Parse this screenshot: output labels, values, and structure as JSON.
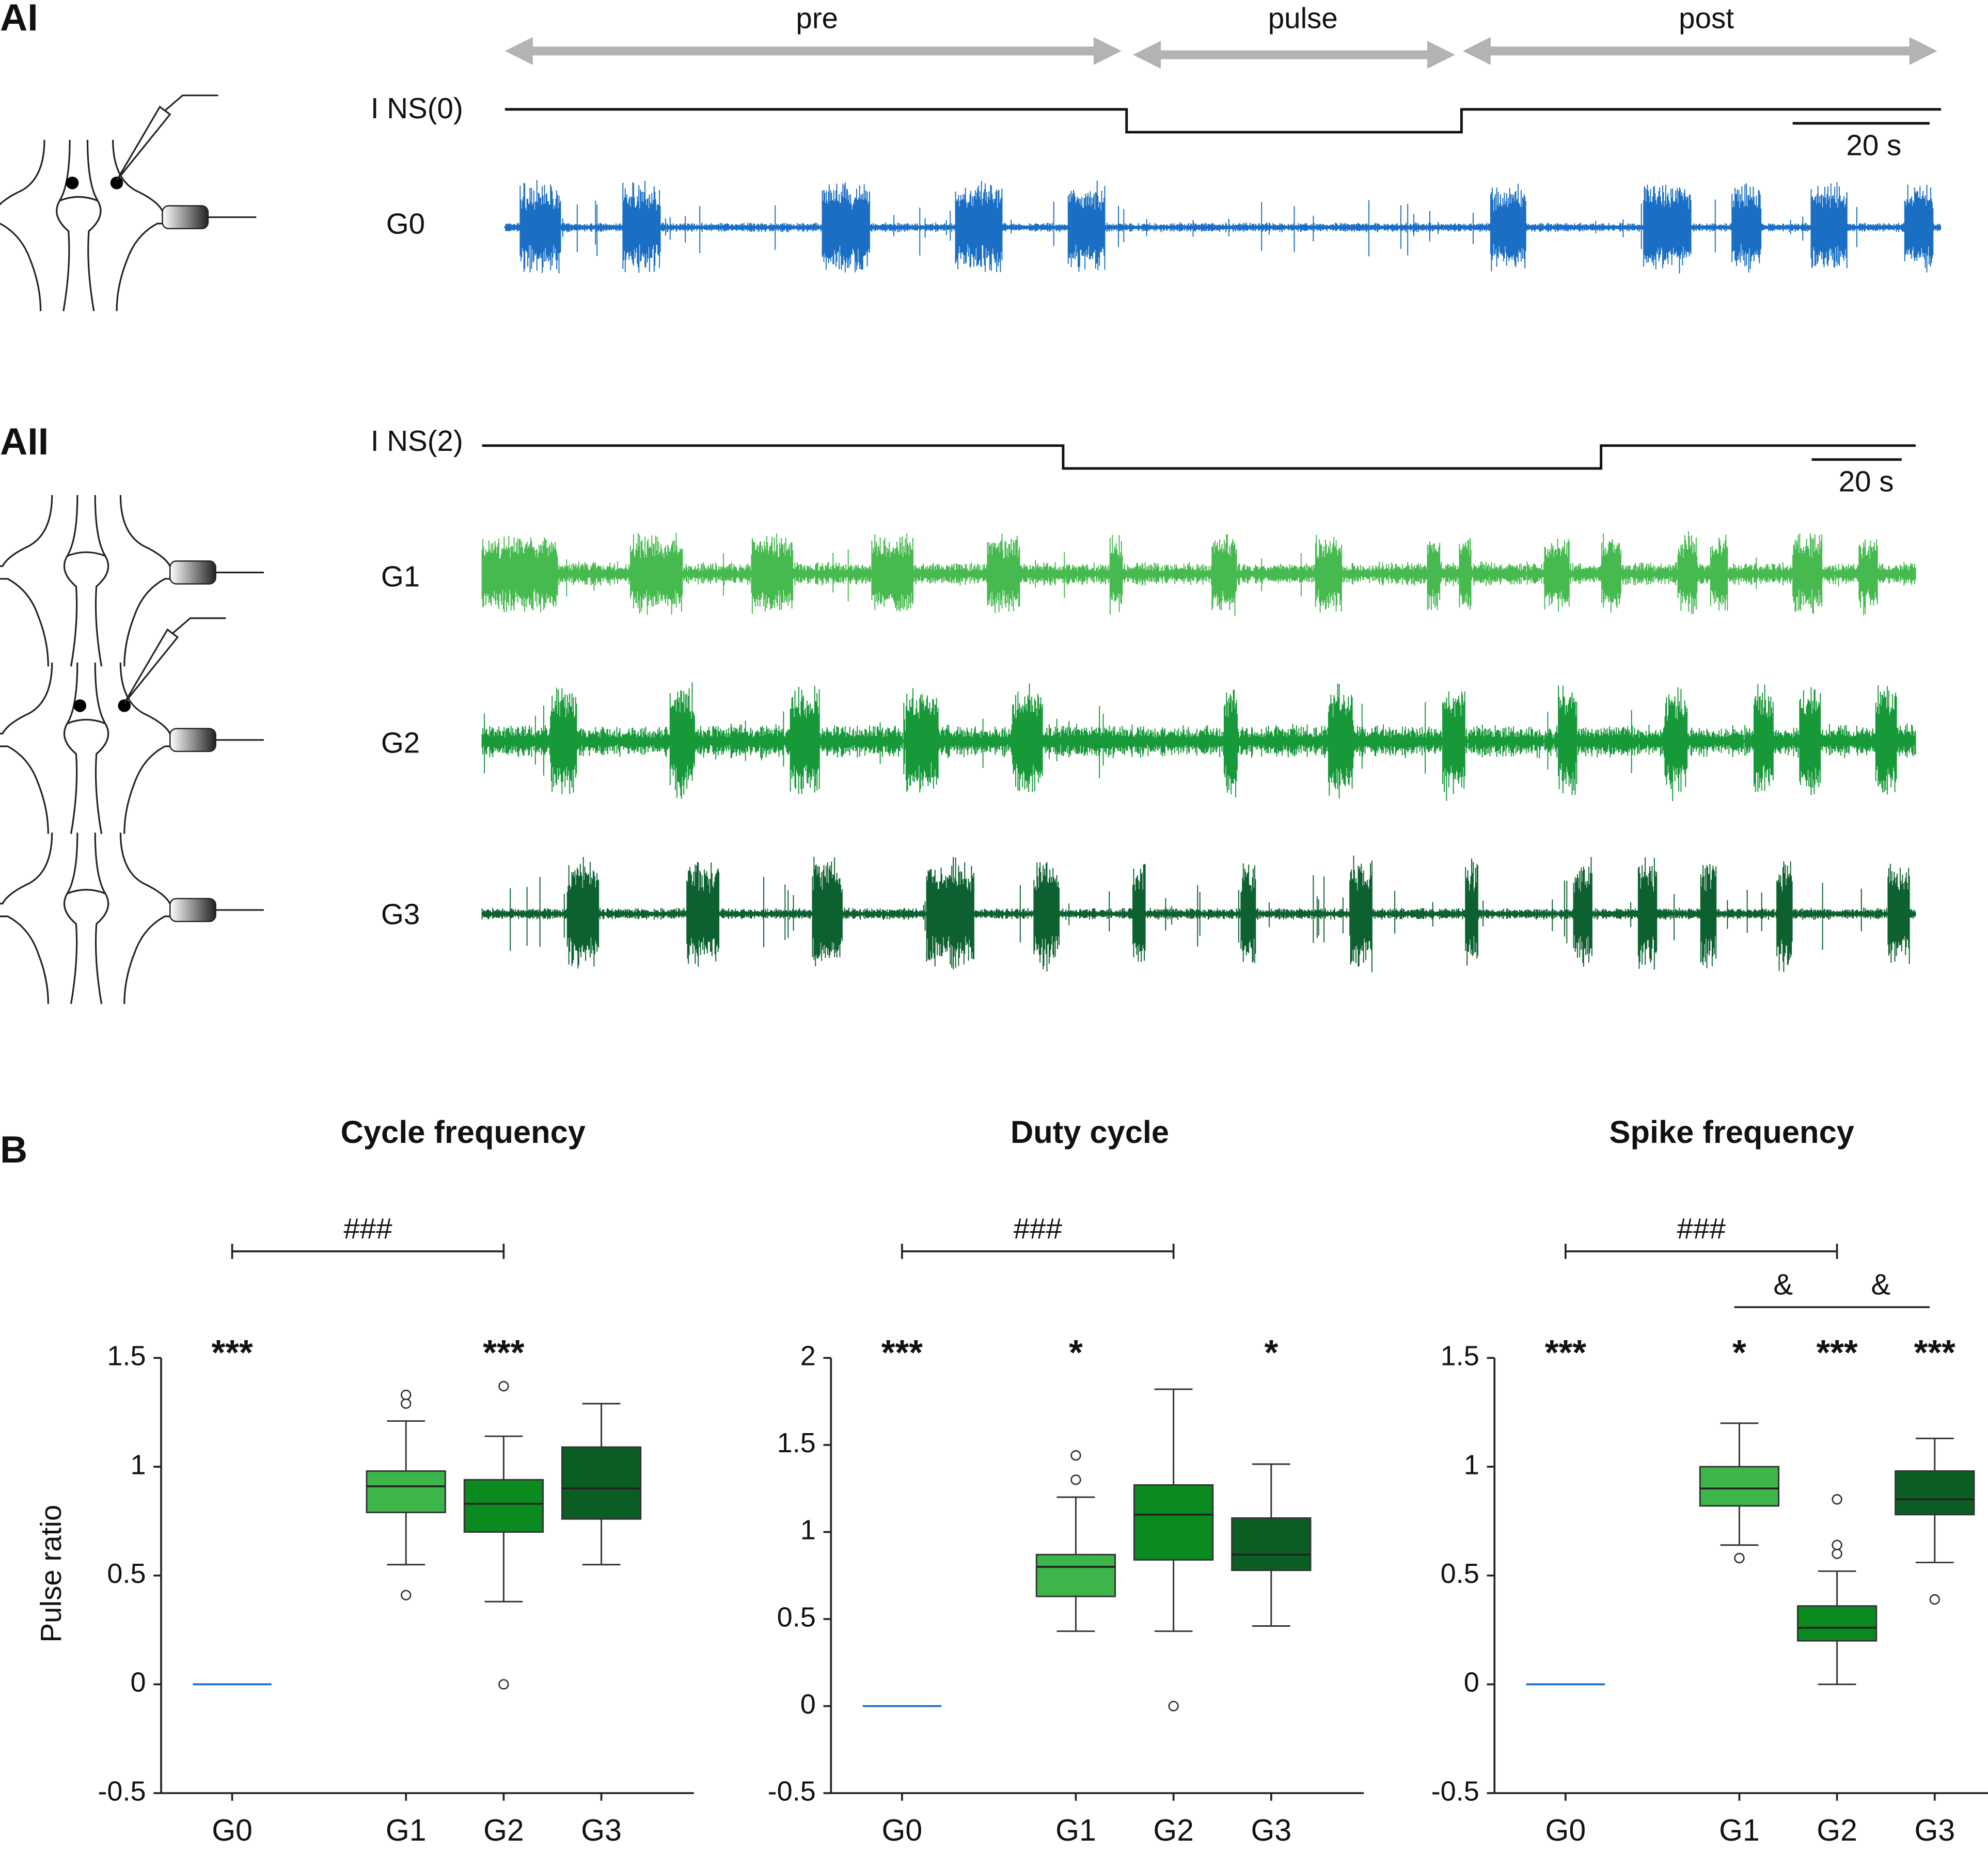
{
  "panels": {
    "AI": {
      "label": "AI",
      "phases": [
        "pre",
        "pulse",
        "post"
      ],
      "stimulus": "I NS(0)",
      "scale": "20 s",
      "traces": [
        "G0"
      ],
      "trace_colors": [
        "#1a6fc4"
      ]
    },
    "AII": {
      "label": "AII",
      "stimulus": "I NS(2)",
      "scale": "20 s",
      "traces": [
        "G1",
        "G2",
        "G3"
      ],
      "trace_colors": [
        "#46b94f",
        "#17993a",
        "#0d6130"
      ]
    },
    "B": {
      "label": "B"
    }
  },
  "chart_data": [
    {
      "type": "box",
      "title": "Cycle frequency",
      "ylabel": "Pulse ratio",
      "categories": [
        "G0",
        "G1",
        "G2",
        "G3"
      ],
      "colors": [
        "#1a6fc4",
        "#3cb54a",
        "#0a8a1f",
        "#0b5e23"
      ],
      "ylim": [
        -0.5,
        1.5
      ],
      "yticks": [
        -0.5,
        0,
        0.5,
        1,
        1.5
      ],
      "boxes": [
        {
          "min": 0,
          "q1": 0,
          "median": 0,
          "q3": 0,
          "max": 0,
          "outliers": []
        },
        {
          "min": 0.55,
          "q1": 0.79,
          "median": 0.91,
          "q3": 0.98,
          "max": 1.21,
          "outliers": [
            0.41,
            1.29,
            1.33
          ]
        },
        {
          "min": 0.38,
          "q1": 0.7,
          "median": 0.83,
          "q3": 0.94,
          "max": 1.14,
          "outliers": [
            0,
            1.37
          ]
        },
        {
          "min": 0.55,
          "q1": 0.76,
          "median": 0.9,
          "q3": 1.09,
          "max": 1.29,
          "outliers": []
        }
      ],
      "significance": [
        "***",
        null,
        "***",
        null
      ],
      "brackets": [
        {
          "from": "G0",
          "to": "G2",
          "label": "###"
        }
      ]
    },
    {
      "type": "box",
      "title": "Duty cycle",
      "categories": [
        "G0",
        "G1",
        "G2",
        "G3"
      ],
      "colors": [
        "#1a6fc4",
        "#3cb54a",
        "#0a8a1f",
        "#0b5e23"
      ],
      "ylim": [
        -0.5,
        2
      ],
      "yticks": [
        -0.5,
        0,
        0.5,
        1,
        1.5,
        2
      ],
      "boxes": [
        {
          "min": 0,
          "q1": 0,
          "median": 0,
          "q3": 0,
          "max": 0,
          "outliers": []
        },
        {
          "min": 0.43,
          "q1": 0.63,
          "median": 0.8,
          "q3": 0.87,
          "max": 1.2,
          "outliers": [
            1.3,
            1.44
          ]
        },
        {
          "min": 0.43,
          "q1": 0.84,
          "median": 1.1,
          "q3": 1.27,
          "max": 1.82,
          "outliers": [
            0
          ]
        },
        {
          "min": 0.46,
          "q1": 0.78,
          "median": 0.87,
          "q3": 1.08,
          "max": 1.39,
          "outliers": []
        }
      ],
      "significance": [
        "***",
        "*",
        null,
        "*"
      ],
      "brackets": [
        {
          "from": "G0",
          "to": "G2",
          "label": "###"
        }
      ]
    },
    {
      "type": "box",
      "title": "Spike frequency",
      "categories": [
        "G0",
        "G1",
        "G2",
        "G3"
      ],
      "colors": [
        "#1a6fc4",
        "#3cb54a",
        "#0a8a1f",
        "#0b5e23"
      ],
      "ylim": [
        -0.5,
        1.5
      ],
      "yticks": [
        -0.5,
        0,
        0.5,
        1,
        1.5
      ],
      "boxes": [
        {
          "min": 0,
          "q1": 0,
          "median": 0,
          "q3": 0,
          "max": 0,
          "outliers": []
        },
        {
          "min": 0.64,
          "q1": 0.82,
          "median": 0.9,
          "q3": 1.0,
          "max": 1.2,
          "outliers": [
            0.58
          ]
        },
        {
          "min": 0,
          "q1": 0.2,
          "median": 0.26,
          "q3": 0.36,
          "max": 0.52,
          "outliers": [
            0.6,
            0.64,
            0.85
          ]
        },
        {
          "min": 0.56,
          "q1": 0.78,
          "median": 0.85,
          "q3": 0.98,
          "max": 1.13,
          "outliers": [
            0.39
          ]
        }
      ],
      "significance": [
        "***",
        "*",
        "***",
        "***"
      ],
      "brackets": [
        {
          "from": "G0",
          "to": "G2",
          "label": "###"
        },
        {
          "from": "G1",
          "to": "G2",
          "label": "&"
        },
        {
          "from": "G2",
          "to": "G3",
          "label": "&"
        }
      ]
    }
  ]
}
